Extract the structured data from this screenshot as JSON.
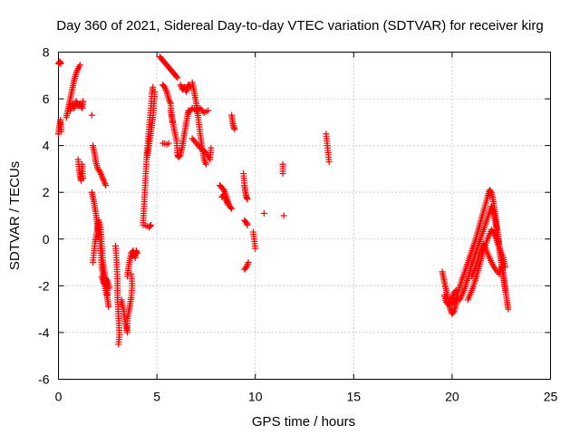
{
  "chart_data": {
    "type": "scatter",
    "title": "Day 360 of 2021, Sidereal Day-to-day VTEC variation (SDTVAR) for receiver kirg",
    "xlabel": "GPS time / hours",
    "ylabel": "SDTVAR / TECUs",
    "xlim": [
      0,
      25
    ],
    "ylim": [
      -6,
      8
    ],
    "xticks": [
      0,
      5,
      10,
      15,
      20,
      25
    ],
    "yticks": [
      -6,
      -4,
      -2,
      0,
      2,
      4,
      6,
      8
    ],
    "grid": true,
    "marker": "plus",
    "color": "#ff0000",
    "segments": [
      [
        [
          0.0,
          7.5
        ],
        [
          0.08,
          7.6
        ],
        [
          0.12,
          7.5
        ]
      ],
      [
        [
          0.0,
          4.5
        ],
        [
          0.05,
          4.8
        ],
        [
          0.1,
          5.1
        ],
        [
          0.15,
          4.6
        ]
      ],
      [
        [
          0.4,
          5.2
        ],
        [
          0.5,
          5.6
        ],
        [
          0.6,
          6.0
        ],
        [
          0.7,
          6.4
        ],
        [
          0.8,
          6.8
        ],
        [
          0.9,
          7.1
        ],
        [
          1.0,
          7.3
        ],
        [
          1.1,
          7.45
        ]
      ],
      [
        [
          0.6,
          5.5
        ],
        [
          0.7,
          5.8
        ],
        [
          0.8,
          5.6
        ],
        [
          0.9,
          5.9
        ],
        [
          1.0,
          5.7
        ],
        [
          1.1,
          5.8
        ],
        [
          1.2,
          5.6
        ],
        [
          1.25,
          5.9
        ]
      ],
      [
        [
          1.0,
          3.4
        ],
        [
          1.05,
          3.0
        ],
        [
          1.1,
          2.7
        ],
        [
          1.15,
          2.5
        ],
        [
          1.2,
          3.2
        ],
        [
          1.25,
          2.6
        ]
      ],
      [
        [
          1.7,
          5.3
        ]
      ],
      [
        [
          1.75,
          4.0
        ],
        [
          1.85,
          3.6
        ],
        [
          1.9,
          3.3
        ],
        [
          2.0,
          3.0
        ],
        [
          2.1,
          2.9
        ],
        [
          2.2,
          2.7
        ],
        [
          2.3,
          2.5
        ],
        [
          2.4,
          2.3
        ]
      ],
      [
        [
          1.7,
          2.0
        ],
        [
          1.8,
          1.6
        ],
        [
          1.9,
          1.1
        ],
        [
          2.0,
          0.5
        ],
        [
          2.1,
          0.0
        ],
        [
          2.15,
          -0.6
        ],
        [
          2.2,
          -1.2
        ],
        [
          2.3,
          -1.7
        ],
        [
          2.4,
          -2.2
        ],
        [
          2.5,
          -2.6
        ],
        [
          2.55,
          -2.9
        ]
      ],
      [
        [
          1.75,
          -1.0
        ],
        [
          1.85,
          -0.2
        ],
        [
          1.95,
          0.3
        ],
        [
          2.05,
          0.8
        ],
        [
          2.15,
          0.4
        ],
        [
          2.2,
          -0.3
        ],
        [
          2.25,
          -0.9
        ],
        [
          2.35,
          -1.5
        ],
        [
          2.45,
          -2.0
        ],
        [
          2.5,
          -2.4
        ]
      ],
      [
        [
          2.2,
          -1.6
        ],
        [
          2.3,
          -1.9
        ],
        [
          2.4,
          -1.7
        ],
        [
          2.5,
          -1.8
        ],
        [
          2.6,
          -2.1
        ]
      ],
      [
        [
          2.9,
          -0.3
        ],
        [
          2.95,
          -0.9
        ],
        [
          3.0,
          -1.8
        ],
        [
          3.0,
          -2.5
        ],
        [
          3.05,
          -3.3
        ],
        [
          3.1,
          -4.1
        ],
        [
          3.05,
          -4.5
        ]
      ],
      [
        [
          3.2,
          -2.6
        ],
        [
          3.3,
          -3.0
        ],
        [
          3.4,
          -3.6
        ],
        [
          3.5,
          -4.0
        ],
        [
          3.5,
          -3.4
        ],
        [
          3.6,
          -3.0
        ],
        [
          3.7,
          -2.5
        ],
        [
          3.75,
          -2.0
        ],
        [
          3.7,
          -1.5
        ]
      ],
      [
        [
          3.5,
          -1.6
        ],
        [
          3.6,
          -1.0
        ],
        [
          3.7,
          -0.6
        ],
        [
          3.8,
          -0.5
        ],
        [
          3.9,
          -0.8
        ],
        [
          3.95,
          -0.5
        ],
        [
          4.0,
          -0.6
        ]
      ],
      [
        [
          4.3,
          0.6
        ],
        [
          4.35,
          1.4
        ],
        [
          4.4,
          2.2
        ],
        [
          4.45,
          3.0
        ],
        [
          4.5,
          3.7
        ],
        [
          4.55,
          4.2
        ],
        [
          4.6,
          4.7
        ],
        [
          4.65,
          5.2
        ],
        [
          4.7,
          5.6
        ],
        [
          4.75,
          6.2
        ],
        [
          4.8,
          6.5
        ]
      ],
      [
        [
          4.4,
          0.6
        ],
        [
          4.5,
          0.55
        ],
        [
          4.6,
          0.5
        ],
        [
          4.7,
          0.6
        ]
      ],
      [
        [
          4.5,
          3.5
        ],
        [
          4.6,
          4.0
        ],
        [
          4.7,
          4.6
        ],
        [
          4.8,
          5.2
        ],
        [
          4.85,
          5.8
        ],
        [
          4.9,
          6.3
        ]
      ],
      [
        [
          5.15,
          7.8
        ],
        [
          5.25,
          7.7
        ],
        [
          5.35,
          7.6
        ],
        [
          5.45,
          7.5
        ],
        [
          5.55,
          7.4
        ],
        [
          5.65,
          7.3
        ],
        [
          5.75,
          7.2
        ],
        [
          5.85,
          7.1
        ],
        [
          5.95,
          7.0
        ],
        [
          6.05,
          6.9
        ]
      ],
      [
        [
          5.3,
          6.6
        ],
        [
          5.4,
          6.5
        ],
        [
          5.5,
          6.3
        ],
        [
          5.6,
          6.0
        ],
        [
          5.7,
          5.8
        ],
        [
          5.75,
          5.3
        ],
        [
          5.8,
          5.0
        ]
      ],
      [
        [
          5.3,
          4.1
        ],
        [
          5.4,
          4.1
        ],
        [
          5.5,
          4.05
        ],
        [
          5.6,
          4.1
        ]
      ],
      [
        [
          5.7,
          5.5
        ],
        [
          5.85,
          4.8
        ],
        [
          6.0,
          4.2
        ],
        [
          6.05,
          3.6
        ],
        [
          6.1,
          3.5
        ],
        [
          6.2,
          3.6
        ],
        [
          6.3,
          4.0
        ],
        [
          6.4,
          4.5
        ],
        [
          6.5,
          5.0
        ],
        [
          6.6,
          5.5
        ]
      ],
      [
        [
          6.2,
          6.6
        ],
        [
          6.3,
          6.4
        ],
        [
          6.4,
          6.5
        ],
        [
          6.5,
          6.3
        ],
        [
          6.6,
          6.6
        ],
        [
          6.7,
          6.5
        ]
      ],
      [
        [
          6.8,
          6.7
        ],
        [
          6.9,
          6.3
        ],
        [
          7.0,
          5.8
        ],
        [
          7.1,
          5.2
        ],
        [
          7.2,
          4.5
        ],
        [
          7.3,
          3.9
        ],
        [
          7.4,
          3.4
        ],
        [
          7.5,
          3.2
        ]
      ],
      [
        [
          6.6,
          5.4
        ],
        [
          6.8,
          5.6
        ],
        [
          7.0,
          5.5
        ],
        [
          7.2,
          5.6
        ],
        [
          7.4,
          5.4
        ],
        [
          7.6,
          5.5
        ]
      ],
      [
        [
          6.8,
          4.3
        ],
        [
          7.0,
          4.1
        ],
        [
          7.2,
          3.9
        ],
        [
          7.5,
          3.7
        ],
        [
          7.7,
          3.4
        ],
        [
          7.75,
          3.9
        ]
      ],
      [
        [
          8.2,
          2.3
        ],
        [
          8.3,
          2.2
        ],
        [
          8.4,
          2.1
        ],
        [
          8.5,
          1.9
        ],
        [
          8.6,
          1.6
        ],
        [
          8.7,
          1.4
        ],
        [
          8.8,
          1.3
        ]
      ],
      [
        [
          8.3,
          1.8
        ],
        [
          8.4,
          1.9
        ],
        [
          8.5,
          1.7
        ],
        [
          8.6,
          1.5
        ]
      ],
      [
        [
          8.8,
          5.3
        ],
        [
          8.85,
          5.0
        ],
        [
          8.9,
          4.8
        ],
        [
          8.95,
          4.7
        ]
      ],
      [
        [
          9.4,
          2.8
        ],
        [
          9.45,
          2.3
        ],
        [
          9.5,
          2.0
        ],
        [
          9.55,
          1.8
        ],
        [
          9.6,
          1.7
        ]
      ],
      [
        [
          9.45,
          0.8
        ],
        [
          9.55,
          0.7
        ],
        [
          9.6,
          0.6
        ]
      ],
      [
        [
          9.45,
          -1.3
        ],
        [
          9.55,
          -1.2
        ],
        [
          9.65,
          -1.0
        ]
      ],
      [
        [
          9.9,
          0.3
        ],
        [
          10.0,
          -0.4
        ]
      ],
      [
        [
          10.45,
          1.1
        ]
      ],
      [
        [
          11.4,
          3.2
        ],
        [
          11.4,
          2.8
        ]
      ],
      [
        [
          11.45,
          1.0
        ]
      ],
      [
        [
          13.6,
          4.5
        ],
        [
          13.65,
          4.1
        ],
        [
          13.7,
          3.7
        ],
        [
          13.75,
          3.3
        ]
      ],
      [
        [
          19.5,
          -1.4
        ],
        [
          19.6,
          -1.8
        ],
        [
          19.7,
          -2.2
        ],
        [
          19.8,
          -2.6
        ],
        [
          19.9,
          -3.0
        ],
        [
          20.0,
          -3.2
        ],
        [
          20.1,
          -3.1
        ],
        [
          20.2,
          -2.8
        ],
        [
          20.3,
          -2.5
        ]
      ],
      [
        [
          19.6,
          -2.4
        ],
        [
          19.7,
          -2.7
        ],
        [
          19.8,
          -2.8
        ],
        [
          19.9,
          -2.6
        ],
        [
          20.0,
          -2.5
        ],
        [
          20.1,
          -2.3
        ],
        [
          20.2,
          -2.2
        ]
      ],
      [
        [
          20.0,
          -2.8
        ],
        [
          20.2,
          -2.5
        ],
        [
          20.4,
          -2.0
        ],
        [
          20.6,
          -1.5
        ],
        [
          20.8,
          -1.0
        ],
        [
          21.0,
          -0.5
        ],
        [
          21.2,
          0.0
        ],
        [
          21.4,
          0.6
        ],
        [
          21.6,
          1.2
        ],
        [
          21.8,
          1.8
        ],
        [
          21.9,
          2.1
        ],
        [
          22.0,
          2.0
        ],
        [
          22.1,
          1.6
        ],
        [
          22.2,
          1.0
        ],
        [
          22.3,
          0.4
        ],
        [
          22.4,
          -0.3
        ],
        [
          22.5,
          -0.9
        ],
        [
          22.6,
          -1.5
        ],
        [
          22.7,
          -2.1
        ],
        [
          22.8,
          -2.7
        ],
        [
          22.85,
          -3.0
        ]
      ],
      [
        [
          20.4,
          -2.6
        ],
        [
          20.6,
          -2.2
        ],
        [
          20.8,
          -1.7
        ],
        [
          21.0,
          -1.1
        ],
        [
          21.2,
          -0.6
        ],
        [
          21.4,
          -0.1
        ],
        [
          21.6,
          0.4
        ],
        [
          21.8,
          0.9
        ],
        [
          22.0,
          1.4
        ],
        [
          22.1,
          1.2
        ],
        [
          22.2,
          0.7
        ],
        [
          22.3,
          0.2
        ],
        [
          22.4,
          -0.4
        ],
        [
          22.5,
          -1.0
        ],
        [
          22.6,
          -1.6
        ],
        [
          22.7,
          -2.2
        ]
      ],
      [
        [
          20.8,
          -2.6
        ],
        [
          21.0,
          -2.2
        ],
        [
          21.2,
          -1.7
        ],
        [
          21.4,
          -1.1
        ],
        [
          21.6,
          -0.5
        ],
        [
          21.8,
          0.0
        ],
        [
          22.0,
          0.4
        ],
        [
          22.2,
          0.1
        ],
        [
          22.4,
          -0.4
        ],
        [
          22.6,
          -0.8
        ],
        [
          22.7,
          -1.2
        ]
      ],
      [
        [
          21.0,
          -1.6
        ],
        [
          21.2,
          -1.2
        ],
        [
          21.4,
          -0.6
        ],
        [
          21.6,
          -0.2
        ],
        [
          21.8,
          -0.6
        ],
        [
          22.0,
          -1.0
        ],
        [
          22.2,
          -1.3
        ],
        [
          22.4,
          -1.5
        ],
        [
          22.5,
          -1.2
        ]
      ]
    ]
  }
}
